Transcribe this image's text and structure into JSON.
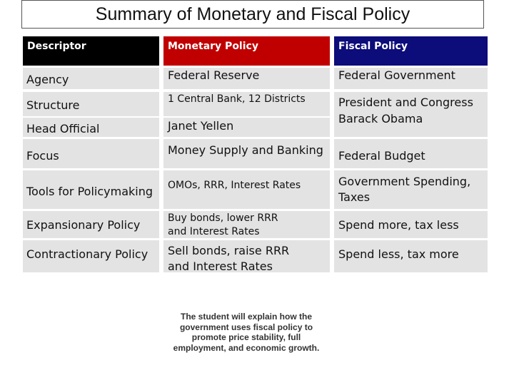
{
  "title": "Summary of Monetary and Fiscal Policy",
  "headers": {
    "descriptor": "Descriptor",
    "monetary": "Monetary Policy",
    "fiscal": "Fiscal Policy"
  },
  "rows": {
    "agency": {
      "label": "Agency",
      "monetary": "Federal Reserve",
      "fiscal": "Federal Government"
    },
    "structure": {
      "label": "Structure",
      "monetary": "1 Central Bank, 12 Districts"
    },
    "head_official": {
      "label": "Head Official",
      "monetary": "Janet Yellen"
    },
    "fiscal_combined": {
      "line1": "President and Congress",
      "line2": "Barack Obama"
    },
    "focus": {
      "label": "Focus",
      "monetary": "Money Supply and Banking",
      "fiscal": "Federal Budget"
    },
    "tools": {
      "label": "Tools for Policymaking",
      "monetary": "OMOs, RRR, Interest Rates",
      "fiscal_line1": "Government Spending,",
      "fiscal_line2": "Taxes"
    },
    "expansionary": {
      "label": "Expansionary Policy",
      "monetary_line1": "Buy bonds, lower RRR",
      "monetary_line2": "and Interest Rates",
      "fiscal": "Spend more, tax less"
    },
    "contractionary": {
      "label": "Contractionary Policy",
      "monetary_line1": "Sell bonds, raise RRR",
      "monetary_line2": "and Interest Rates",
      "fiscal": "Spend less, tax more"
    }
  },
  "caption": "The student will explain how the government uses fiscal policy to promote price stability, full employment, and economic growth."
}
